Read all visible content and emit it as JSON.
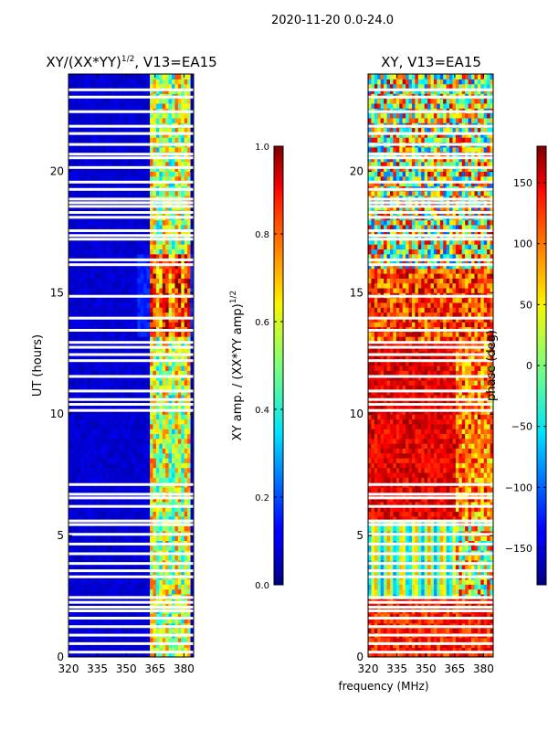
{
  "suptitle": "2020-11-20 0.0-24.0",
  "chart_data": [
    {
      "type": "heatmap",
      "title_main": "XY/(XX*YY)",
      "title_sup": "1/2",
      "title_tail": ", V13=EA15",
      "xlabel": "",
      "ylabel": "UT (hours)",
      "xlim": [
        320,
        385
      ],
      "ylim": [
        0,
        24
      ],
      "xticks": [
        320,
        335,
        350,
        365,
        380
      ],
      "xtick_labels": [
        "320",
        "335",
        "350",
        "365",
        "380"
      ],
      "yticks": [
        0,
        5,
        10,
        15,
        20
      ],
      "ytick_labels": [
        "0",
        "5",
        "10",
        "15",
        "20"
      ],
      "colormap": "jet",
      "colorbar": {
        "label_main": "XY amp. / (XX*YY amp)",
        "label_sup": "1/2",
        "range": [
          0,
          1
        ],
        "ticks": [
          0.0,
          0.2,
          0.4,
          0.6,
          0.8,
          1.0
        ],
        "tick_labels": [
          "0.0",
          "0.2",
          "0.4",
          "0.6",
          "0.8",
          "1.0"
        ]
      },
      "description_values": {
        "background_level": 0.05,
        "high_band_MHz": [
          362,
          382
        ],
        "high_band_level_range": [
          0.3,
          0.9
        ]
      }
    },
    {
      "type": "heatmap",
      "title": "XY, V13=EA15",
      "xlabel": "frequency (MHz)",
      "ylabel": "",
      "xlim": [
        320,
        385
      ],
      "ylim": [
        0,
        24
      ],
      "xticks": [
        320,
        335,
        350,
        365,
        380
      ],
      "xtick_labels": [
        "320",
        "335",
        "350",
        "365",
        "380"
      ],
      "yticks": [
        0,
        5,
        10,
        15,
        20
      ],
      "ytick_labels": [
        "0",
        "5",
        "10",
        "15",
        "20"
      ],
      "colormap": "jet",
      "colorbar": {
        "label": "phase (deg)",
        "range": [
          -180,
          180
        ],
        "ticks": [
          -150,
          -100,
          -50,
          0,
          50,
          100,
          150
        ],
        "tick_labels": [
          "−150",
          "−100",
          "−50",
          "0",
          "50",
          "100",
          "150"
        ]
      }
    }
  ],
  "flagged_rows_hours": [
    0.2,
    0.55,
    0.9,
    1.25,
    1.6,
    1.9,
    2.05,
    2.25,
    2.45,
    3.3,
    3.55,
    3.85,
    4.25,
    4.65,
    5.05,
    5.45,
    5.6,
    6.2,
    6.55,
    6.7,
    7.1,
    10.15,
    10.4,
    10.6,
    10.95,
    11.55,
    12.2,
    12.45,
    12.75,
    12.95,
    13.45,
    13.95,
    14.85,
    16.15,
    16.35,
    17.2,
    17.35,
    17.55,
    18.1,
    18.3,
    18.55,
    18.7,
    18.85,
    19.25,
    19.55,
    20.15,
    20.55,
    20.7,
    21.1,
    21.55,
    21.85,
    22.45,
    23.05,
    23.35
  ]
}
